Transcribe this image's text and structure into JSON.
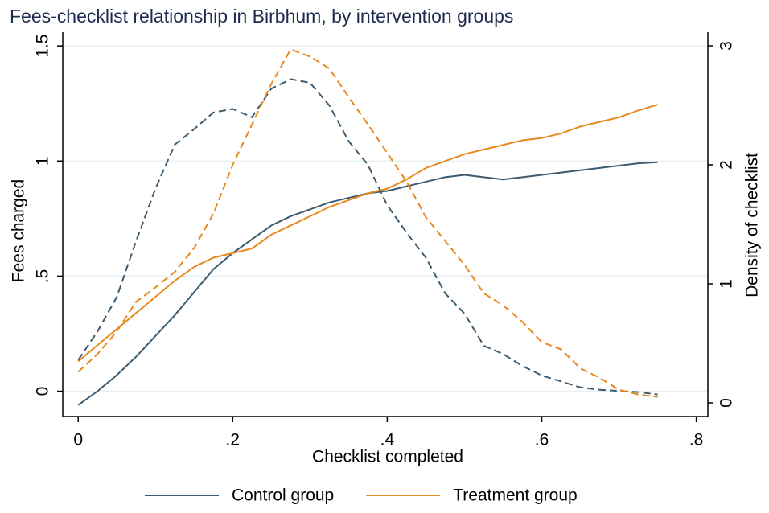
{
  "chart_data": {
    "type": "line",
    "title": "Fees-checklist relationship in Birbhum, by intervention groups",
    "x_label": "Checklist completed",
    "y_label": "Fees charged",
    "y2_label": "Density of checklist",
    "x": [
      0,
      0.025,
      0.05,
      0.075,
      0.1,
      0.125,
      0.15,
      0.175,
      0.2,
      0.225,
      0.25,
      0.275,
      0.3,
      0.325,
      0.35,
      0.375,
      0.4,
      0.425,
      0.45,
      0.475,
      0.5,
      0.525,
      0.55,
      0.575,
      0.6,
      0.625,
      0.65,
      0.675,
      0.7,
      0.725,
      0.75
    ],
    "series": [
      {
        "name": "Control group",
        "color": "#3d5b70",
        "dash": false,
        "values": [
          -0.06,
          0.0,
          0.07,
          0.15,
          0.24,
          0.33,
          0.43,
          0.53,
          0.6,
          0.66,
          0.72,
          0.76,
          0.79,
          0.82,
          0.84,
          0.86,
          0.87,
          0.89,
          0.91,
          0.93,
          0.94,
          0.93,
          0.92,
          0.93,
          0.94,
          0.95,
          0.96,
          0.97,
          0.98,
          0.99,
          0.995
        ]
      },
      {
        "name": "Treatment group",
        "color": "#e8891d",
        "dash": false,
        "values": [
          0.13,
          0.2,
          0.27,
          0.34,
          0.41,
          0.48,
          0.54,
          0.58,
          0.6,
          0.62,
          0.68,
          0.72,
          0.76,
          0.8,
          0.83,
          0.86,
          0.88,
          0.92,
          0.97,
          1.0,
          1.03,
          1.05,
          1.07,
          1.09,
          1.1,
          1.12,
          1.15,
          1.17,
          1.19,
          1.22,
          1.245
        ]
      },
      {
        "color": "#3d5b70",
        "dash": true,
        "axis": "y2",
        "values": [
          0.36,
          0.6,
          0.89,
          1.36,
          1.8,
          2.17,
          2.3,
          2.44,
          2.47,
          2.4,
          2.64,
          2.72,
          2.69,
          2.5,
          2.2,
          2.0,
          1.66,
          1.43,
          1.22,
          0.92,
          0.75,
          0.48,
          0.41,
          0.31,
          0.23,
          0.18,
          0.13,
          0.11,
          0.1,
          0.09,
          0.07
        ]
      },
      {
        "color": "#e8891d",
        "dash": true,
        "axis": "y2",
        "values": [
          0.26,
          0.41,
          0.6,
          0.85,
          0.97,
          1.1,
          1.3,
          1.59,
          2.0,
          2.34,
          2.68,
          2.97,
          2.91,
          2.81,
          2.57,
          2.34,
          2.1,
          1.86,
          1.56,
          1.36,
          1.16,
          0.92,
          0.82,
          0.68,
          0.51,
          0.45,
          0.29,
          0.21,
          0.11,
          0.07,
          0.05
        ]
      }
    ],
    "xlim": [
      -0.02,
      0.815
    ],
    "xticks": [
      0,
      {
        "value": 0.2,
        "label": ".2"
      },
      {
        "value": 0.4,
        "label": ".4"
      },
      {
        "value": 0.6,
        "label": ".6"
      },
      {
        "value": 0.8,
        "label": ".8"
      }
    ],
    "ylim": [
      -0.11,
      1.56
    ],
    "yticks": [
      0,
      {
        "value": 0.5,
        "label": ".5"
      },
      1,
      1.5
    ],
    "y2lim": [
      -0.115,
      3.115
    ],
    "y2ticks": [
      0,
      1,
      2,
      3
    ],
    "grid": true
  }
}
